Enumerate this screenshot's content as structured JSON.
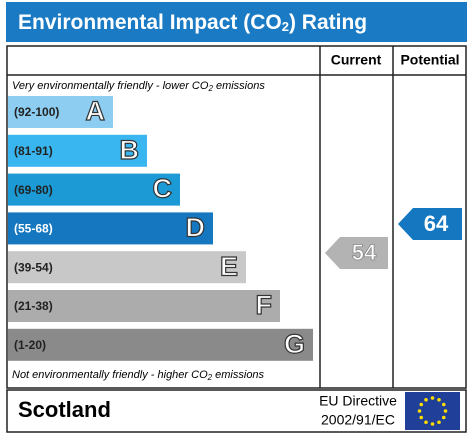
{
  "header": {
    "title_parts": [
      "Environmental Impact (CO",
      "2",
      ") Rating"
    ]
  },
  "columns": [
    "Current",
    "Potential"
  ],
  "top_note": [
    "Very environmentally friendly - lower CO",
    "2",
    " emissions"
  ],
  "bands": [
    {
      "range": "(92-100)",
      "letter": "A"
    },
    {
      "range": "(81-91)",
      "letter": "B"
    },
    {
      "range": "(69-80)",
      "letter": "C"
    },
    {
      "range": "(55-68)",
      "letter": "D"
    },
    {
      "range": "(39-54)",
      "letter": "E"
    },
    {
      "range": "(21-38)",
      "letter": "F"
    },
    {
      "range": "(1-20)",
      "letter": "G"
    }
  ],
  "bottom_note": [
    "Not environmentally friendly - higher CO",
    "2",
    " emissions"
  ],
  "current": {
    "value": 54
  },
  "potential": {
    "value": 64
  },
  "footer": {
    "region": "Scotland",
    "directive": [
      "EU Directive",
      "2002/91/EC"
    ]
  }
}
